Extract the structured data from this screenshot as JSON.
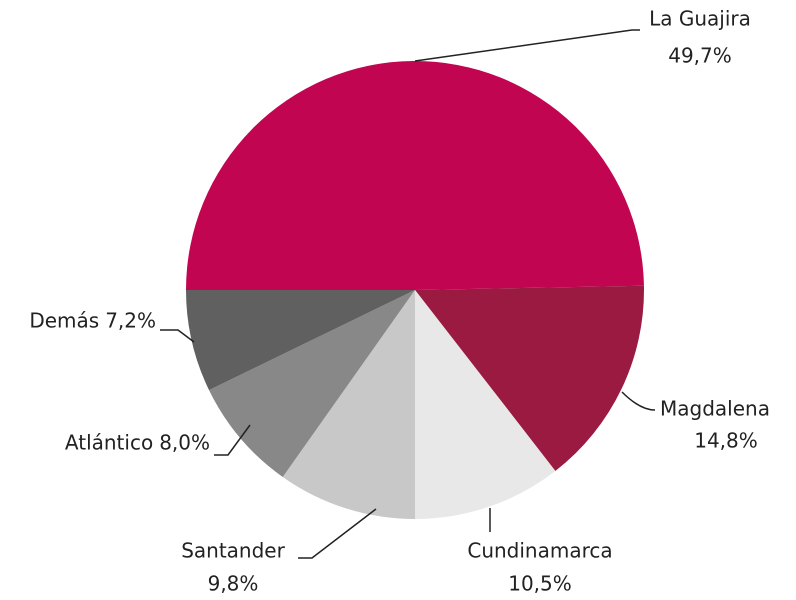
{
  "chart_data": {
    "type": "pie",
    "categories": [
      "La Guajira",
      "Magdalena",
      "Cundinamarca",
      "Santander",
      "Atlántico",
      "Demás"
    ],
    "values": [
      49.7,
      14.8,
      10.5,
      9.8,
      8.0,
      7.2
    ],
    "value_labels": [
      "49,7%",
      "14,8%",
      "10,5%",
      "9,8%",
      "8,0%",
      "7,2%"
    ],
    "colors": [
      "#c10550",
      "#9b1a42",
      "#e8e8e8",
      "#c8c8c8",
      "#888888",
      "#606060"
    ]
  }
}
